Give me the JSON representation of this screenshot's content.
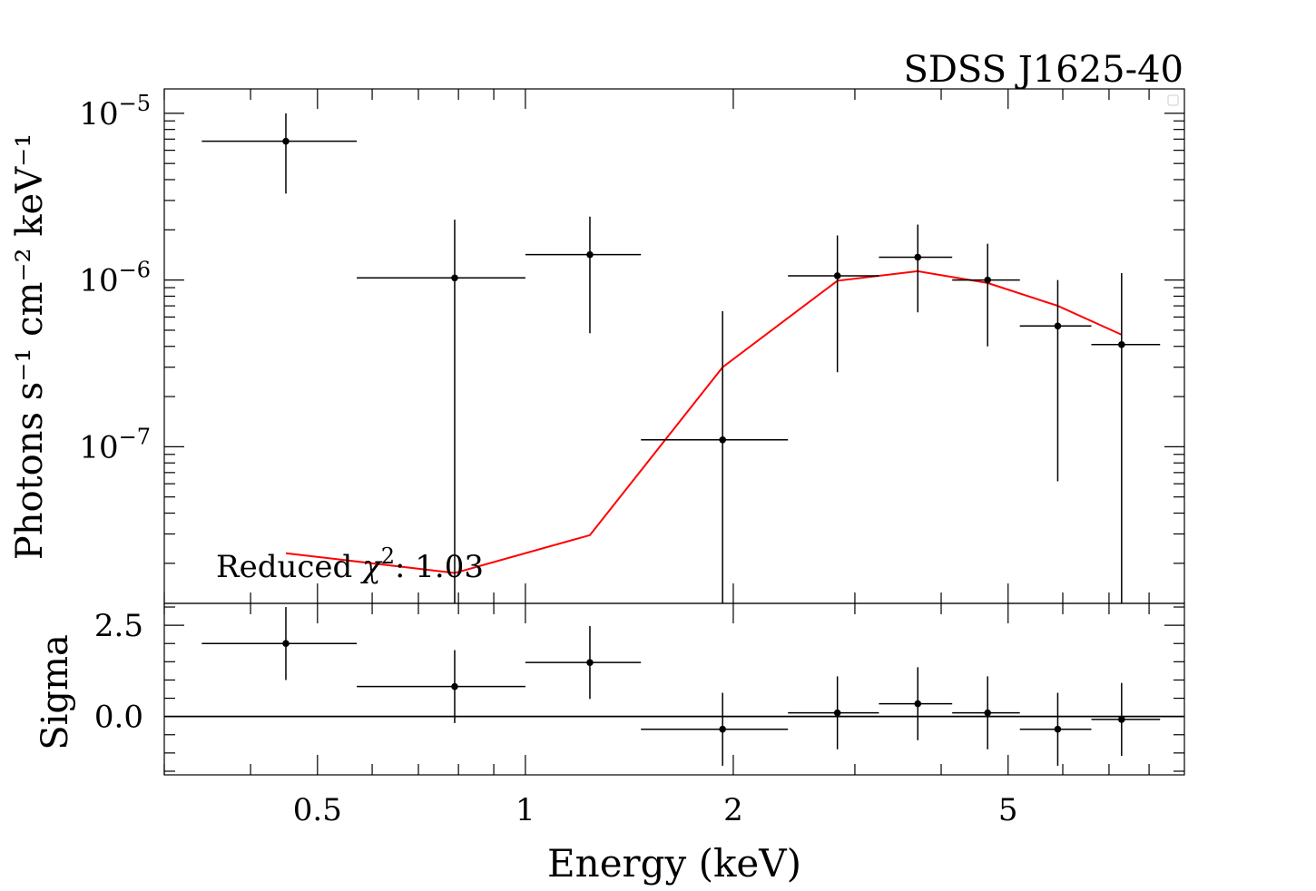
{
  "chart_data": [
    {
      "type": "scatter",
      "panel": "spectrum",
      "title": "SDSS J1625-40",
      "xlabel": "Energy (keV)",
      "ylabel": "Photons s⁻¹ cm⁻² keV⁻¹",
      "xscale": "log",
      "yscale": "log",
      "xlim": [
        0.3,
        9.0
      ],
      "ylim": [
        1.15e-08,
        1.4e-05
      ],
      "yticks": [
        {
          "value": 1e-05,
          "base": "10",
          "exp": "−5"
        },
        {
          "value": 1e-06,
          "base": "10",
          "exp": "−6"
        },
        {
          "value": 1e-07,
          "base": "10",
          "exp": "−7"
        }
      ],
      "annotation": {
        "prefix": "Reduced ",
        "symbol": "χ",
        "exp": "2",
        "suffix": ": 1.03"
      },
      "series": [
        {
          "kind": "data",
          "color": "#000000",
          "points": [
            {
              "x": 0.45,
              "xlo": 0.34,
              "xhi": 0.57,
              "y": 6.8e-06,
              "ylo": 3.3e-06,
              "yhi": 1e-05
            },
            {
              "x": 0.79,
              "xlo": 0.57,
              "xhi": 1.0,
              "y": 1.03e-06,
              "ylo": 1.15e-08,
              "yhi": 2.3e-06
            },
            {
              "x": 1.24,
              "xlo": 1.0,
              "xhi": 1.47,
              "y": 1.42e-06,
              "ylo": 4.8e-07,
              "yhi": 2.4e-06
            },
            {
              "x": 1.93,
              "xlo": 1.47,
              "xhi": 2.4,
              "y": 1.1e-07,
              "ylo": 1.15e-08,
              "yhi": 6.5e-07
            },
            {
              "x": 2.83,
              "xlo": 2.4,
              "xhi": 3.25,
              "y": 1.06e-06,
              "ylo": 2.8e-07,
              "yhi": 1.85e-06
            },
            {
              "x": 3.7,
              "xlo": 3.25,
              "xhi": 4.15,
              "y": 1.37e-06,
              "ylo": 6.4e-07,
              "yhi": 2.15e-06
            },
            {
              "x": 4.67,
              "xlo": 4.15,
              "xhi": 5.2,
              "y": 1e-06,
              "ylo": 4e-07,
              "yhi": 1.65e-06
            },
            {
              "x": 5.9,
              "xlo": 5.2,
              "xhi": 6.6,
              "y": 5.3e-07,
              "ylo": 6.2e-08,
              "yhi": 1e-06
            },
            {
              "x": 7.3,
              "xlo": 6.6,
              "xhi": 8.3,
              "y": 4.1e-07,
              "ylo": 1.15e-08,
              "yhi": 1.1e-06
            }
          ]
        },
        {
          "kind": "model",
          "color": "#ff0000",
          "x": [
            0.45,
            0.79,
            1.24,
            1.93,
            2.83,
            3.7,
            4.67,
            5.9,
            7.3
          ],
          "y": [
            2.3e-08,
            1.75e-08,
            2.95e-08,
            3e-07,
            9.9e-07,
            1.13e-06,
            9.6e-07,
            7e-07,
            4.7e-07
          ]
        }
      ]
    },
    {
      "type": "scatter",
      "panel": "residuals",
      "xlabel": "Energy (keV)",
      "ylabel": "Sigma",
      "xscale": "log",
      "xlim": [
        0.3,
        9.0
      ],
      "ylim": [
        -1.6,
        3.1
      ],
      "xticks": [
        {
          "value": 0.5,
          "label": "0.5"
        },
        {
          "value": 1,
          "label": "1"
        },
        {
          "value": 2,
          "label": "2"
        },
        {
          "value": 5,
          "label": "5"
        }
      ],
      "yticks": [
        {
          "value": 2.5,
          "label": "2.5"
        },
        {
          "value": 0.0,
          "label": "0.0"
        }
      ],
      "zero_line": 0,
      "points": [
        {
          "x": 0.45,
          "xlo": 0.34,
          "xhi": 0.57,
          "y": 2.0,
          "ylo": 1.0,
          "yhi": 3.0
        },
        {
          "x": 0.79,
          "xlo": 0.57,
          "xhi": 1.0,
          "y": 0.82,
          "ylo": -0.18,
          "yhi": 1.82
        },
        {
          "x": 1.24,
          "xlo": 1.0,
          "xhi": 1.47,
          "y": 1.48,
          "ylo": 0.48,
          "yhi": 2.48
        },
        {
          "x": 1.93,
          "xlo": 1.47,
          "xhi": 2.4,
          "y": -0.35,
          "ylo": -1.35,
          "yhi": 0.65
        },
        {
          "x": 2.83,
          "xlo": 2.4,
          "xhi": 3.25,
          "y": 0.1,
          "ylo": -0.9,
          "yhi": 1.1
        },
        {
          "x": 3.7,
          "xlo": 3.25,
          "xhi": 4.15,
          "y": 0.35,
          "ylo": -0.65,
          "yhi": 1.35
        },
        {
          "x": 4.67,
          "xlo": 4.15,
          "xhi": 5.2,
          "y": 0.1,
          "ylo": -0.9,
          "yhi": 1.1
        },
        {
          "x": 5.9,
          "xlo": 5.2,
          "xhi": 6.6,
          "y": -0.35,
          "ylo": -1.35,
          "yhi": 0.65
        },
        {
          "x": 7.3,
          "xlo": 6.6,
          "xhi": 8.3,
          "y": -0.08,
          "ylo": -1.08,
          "yhi": 0.92
        }
      ]
    }
  ]
}
